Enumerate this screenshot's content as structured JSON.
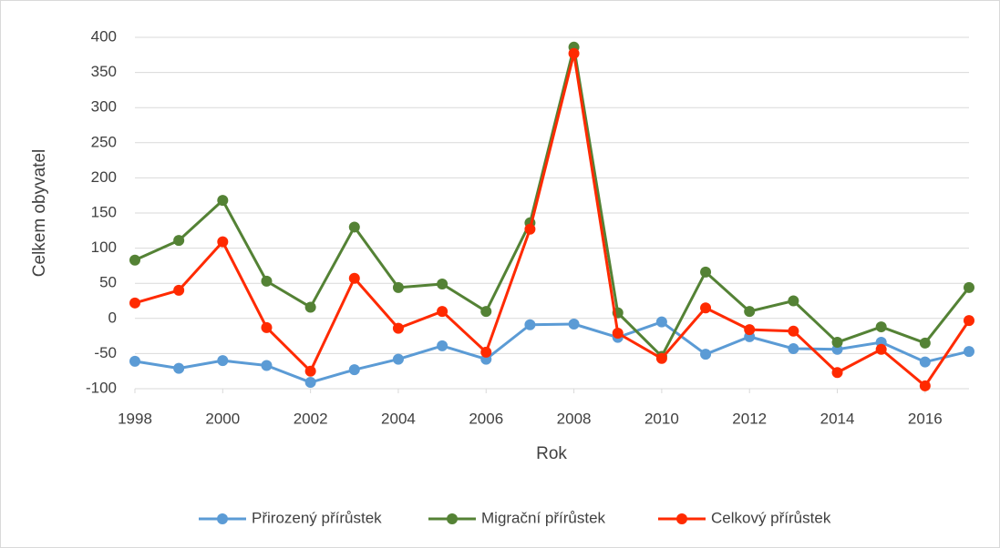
{
  "chart_data": {
    "type": "line",
    "x": [
      1998,
      1999,
      2000,
      2001,
      2002,
      2003,
      2004,
      2005,
      2006,
      2007,
      2008,
      2009,
      2010,
      2011,
      2012,
      2013,
      2014,
      2015,
      2016,
      2017
    ],
    "xlim": [
      1998,
      2017
    ],
    "xticks": [
      1998,
      2000,
      2002,
      2004,
      2006,
      2008,
      2010,
      2012,
      2014,
      2016
    ],
    "ylim": [
      -100,
      400
    ],
    "yticks": [
      -100,
      -50,
      0,
      50,
      100,
      150,
      200,
      250,
      300,
      350,
      400
    ],
    "xlabel": "Rok",
    "ylabel": "Celkem obyvatel",
    "grid": true,
    "legend": "bottom",
    "series": [
      {
        "name": "Přirozený přírůstek",
        "color": "#5b9bd5",
        "values": [
          -61,
          -71,
          -60,
          -67,
          -91,
          -73,
          -58,
          -39,
          -58,
          -9,
          -8,
          -27,
          -5,
          -51,
          -26,
          -43,
          -44,
          -34,
          -62,
          -47
        ]
      },
      {
        "name": "Migrační přírůstek",
        "color": "#548235",
        "values": [
          83,
          111,
          168,
          53,
          16,
          130,
          44,
          49,
          10,
          136,
          386,
          8,
          -54,
          66,
          10,
          25,
          -34,
          -12,
          -35,
          44
        ]
      },
      {
        "name": "Celkový přírůstek",
        "color": "#ff2a00",
        "values": [
          22,
          40,
          109,
          -13,
          -75,
          57,
          -14,
          10,
          -48,
          127,
          377,
          -21,
          -57,
          15,
          -16,
          -18,
          -77,
          -44,
          -96,
          -3
        ]
      }
    ]
  }
}
